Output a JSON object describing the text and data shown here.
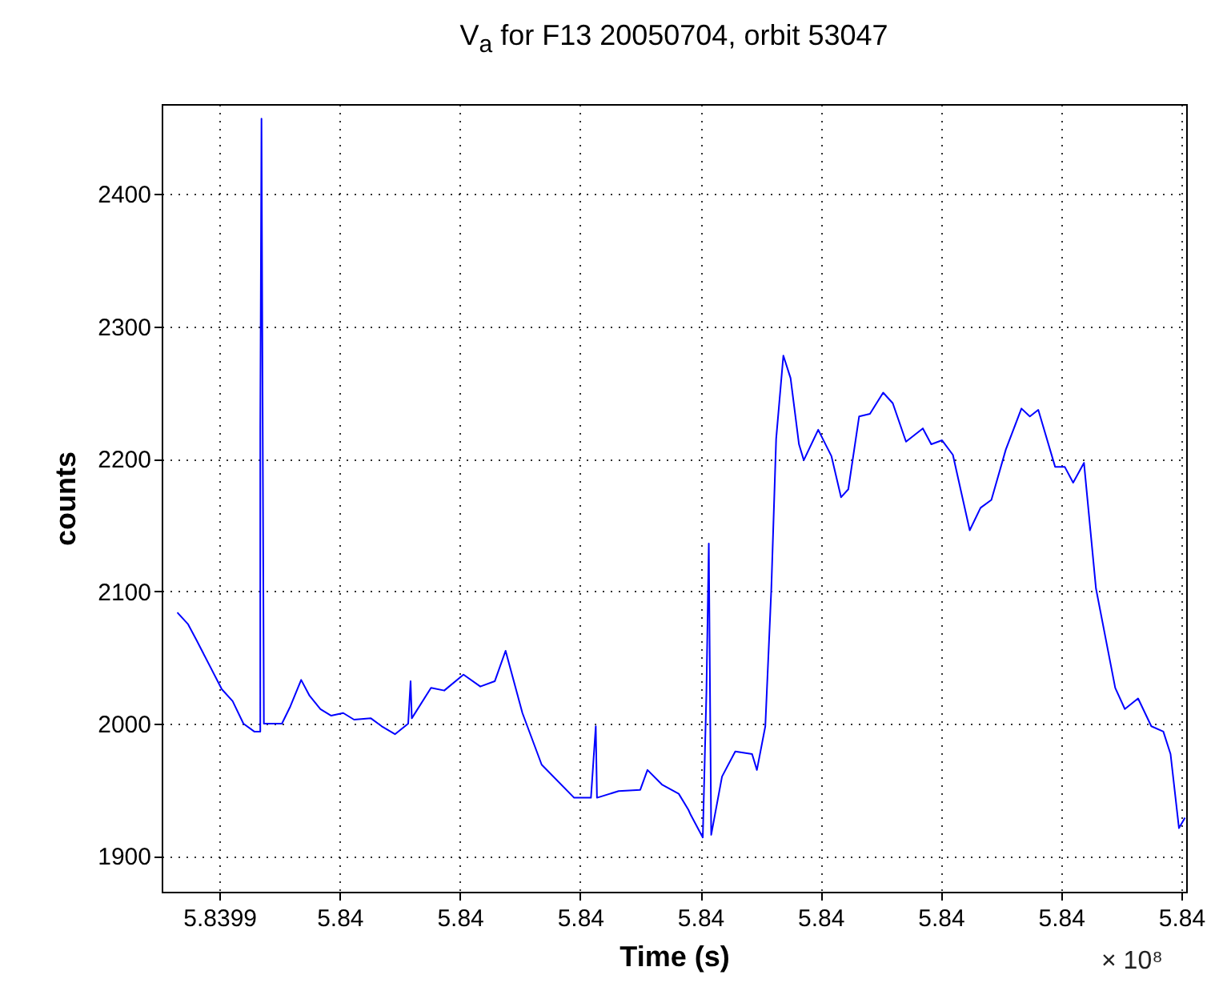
{
  "chart_data": {
    "type": "line",
    "title": "V$_{a}$ for F13 20050704, orbit 53047",
    "xlabel": "Time (s)",
    "ylabel": "counts",
    "annotations": [
      "× 10⁸"
    ],
    "x": [
      5.8399365,
      5.8399374,
      5.8399381,
      5.8399402,
      5.8399411,
      5.839942,
      5.8399429,
      5.8399434,
      5.8399434,
      5.8399435,
      5.8399436,
      5.8399437,
      5.8399452,
      5.8399459,
      5.8399468,
      5.8399475,
      5.8399484,
      5.8399493,
      5.8399503,
      5.8399512,
      5.8399526,
      5.8399535,
      5.8399546,
      5.8399557,
      5.8399559,
      5.839956,
      5.8399576,
      5.8399587,
      5.8399603,
      5.8399617,
      5.8399629,
      5.8399638,
      5.8399652,
      5.8399668,
      5.8399695,
      5.8399709,
      5.8399711,
      5.8399713,
      5.8399714,
      5.8399732,
      5.839975,
      5.8399756,
      5.8399768,
      5.8399782,
      5.839979,
      5.8399792,
      5.8399802,
      5.8399805,
      5.8399807,
      5.8399808,
      5.8399809,
      5.8399818,
      5.8399829,
      5.8399843,
      5.8399847,
      5.8399854,
      5.8399859,
      5.8399863,
      5.8399869,
      5.8399875,
      5.8399882,
      5.8399886,
      5.8399898,
      5.8399909,
      5.8399917,
      5.8399923,
      5.8399932,
      5.8399941,
      5.8399952,
      5.839996,
      5.8399971,
      5.8399985,
      5.8399992,
      5.8400001,
      5.840001,
      5.8400024,
      5.8400033,
      5.8400042,
      5.8400054,
      5.8400067,
      5.8400074,
      5.8400081,
      5.8400095,
      5.8400103,
      5.840011,
      5.8400119,
      5.8400129,
      5.8400145,
      5.8400153,
      5.8400164,
      5.8400175,
      5.8400185,
      5.8400191,
      5.8400198,
      5.8400203
    ],
    "series": [
      {
        "color": "#0000ff",
        "values": [
          2084,
          2075,
          2063,
          2026,
          2017,
          2000,
          1994,
          1994,
          2225,
          2457,
          2225,
          2000,
          2000,
          2013,
          2033,
          2021,
          2011,
          2006,
          2008,
          2003,
          2004,
          1998,
          1992,
          2000,
          2032,
          2004,
          2027,
          2025,
          2037,
          2028,
          2032,
          2055,
          2008,
          1969,
          1944,
          1944,
          1971,
          1998,
          1944,
          1949,
          1950,
          1965,
          1954,
          1947,
          1935,
          1931,
          1914,
          2023,
          2136,
          2025,
          1916,
          1960,
          1979,
          1977,
          1965,
          1998,
          2102,
          2215,
          2278,
          2261,
          2211,
          2199,
          2222,
          2202,
          2171,
          2177,
          2232,
          2234,
          2250,
          2242,
          2213,
          2223,
          2211,
          2214,
          2203,
          2146,
          2163,
          2169,
          2207,
          2238,
          2232,
          2237,
          2194,
          2194,
          2182,
          2197,
          2102,
          2027,
          2011,
          2019,
          1998,
          1994,
          1977,
          1921,
          1929
        ]
      }
    ],
    "xlim": [
      5.8399352,
      5.8400204
    ],
    "xticks": [
      {
        "value": 5.83994,
        "label": "5.8399"
      },
      {
        "value": 5.83995,
        "label": "5.84"
      },
      {
        "value": 5.83996,
        "label": "5.84"
      },
      {
        "value": 5.83997,
        "label": "5.84"
      },
      {
        "value": 5.83998,
        "label": "5.84"
      },
      {
        "value": 5.83999,
        "label": "5.84"
      },
      {
        "value": 5.84,
        "label": "5.84"
      },
      {
        "value": 5.84001,
        "label": "5.84"
      },
      {
        "value": 5.84002,
        "label": "5.84"
      }
    ],
    "ylim": [
      1873,
      2468
    ],
    "yticks": [
      1900,
      2000,
      2100,
      2200,
      2300,
      2400
    ],
    "grid": true,
    "line_style": "solid",
    "marker": "none"
  }
}
